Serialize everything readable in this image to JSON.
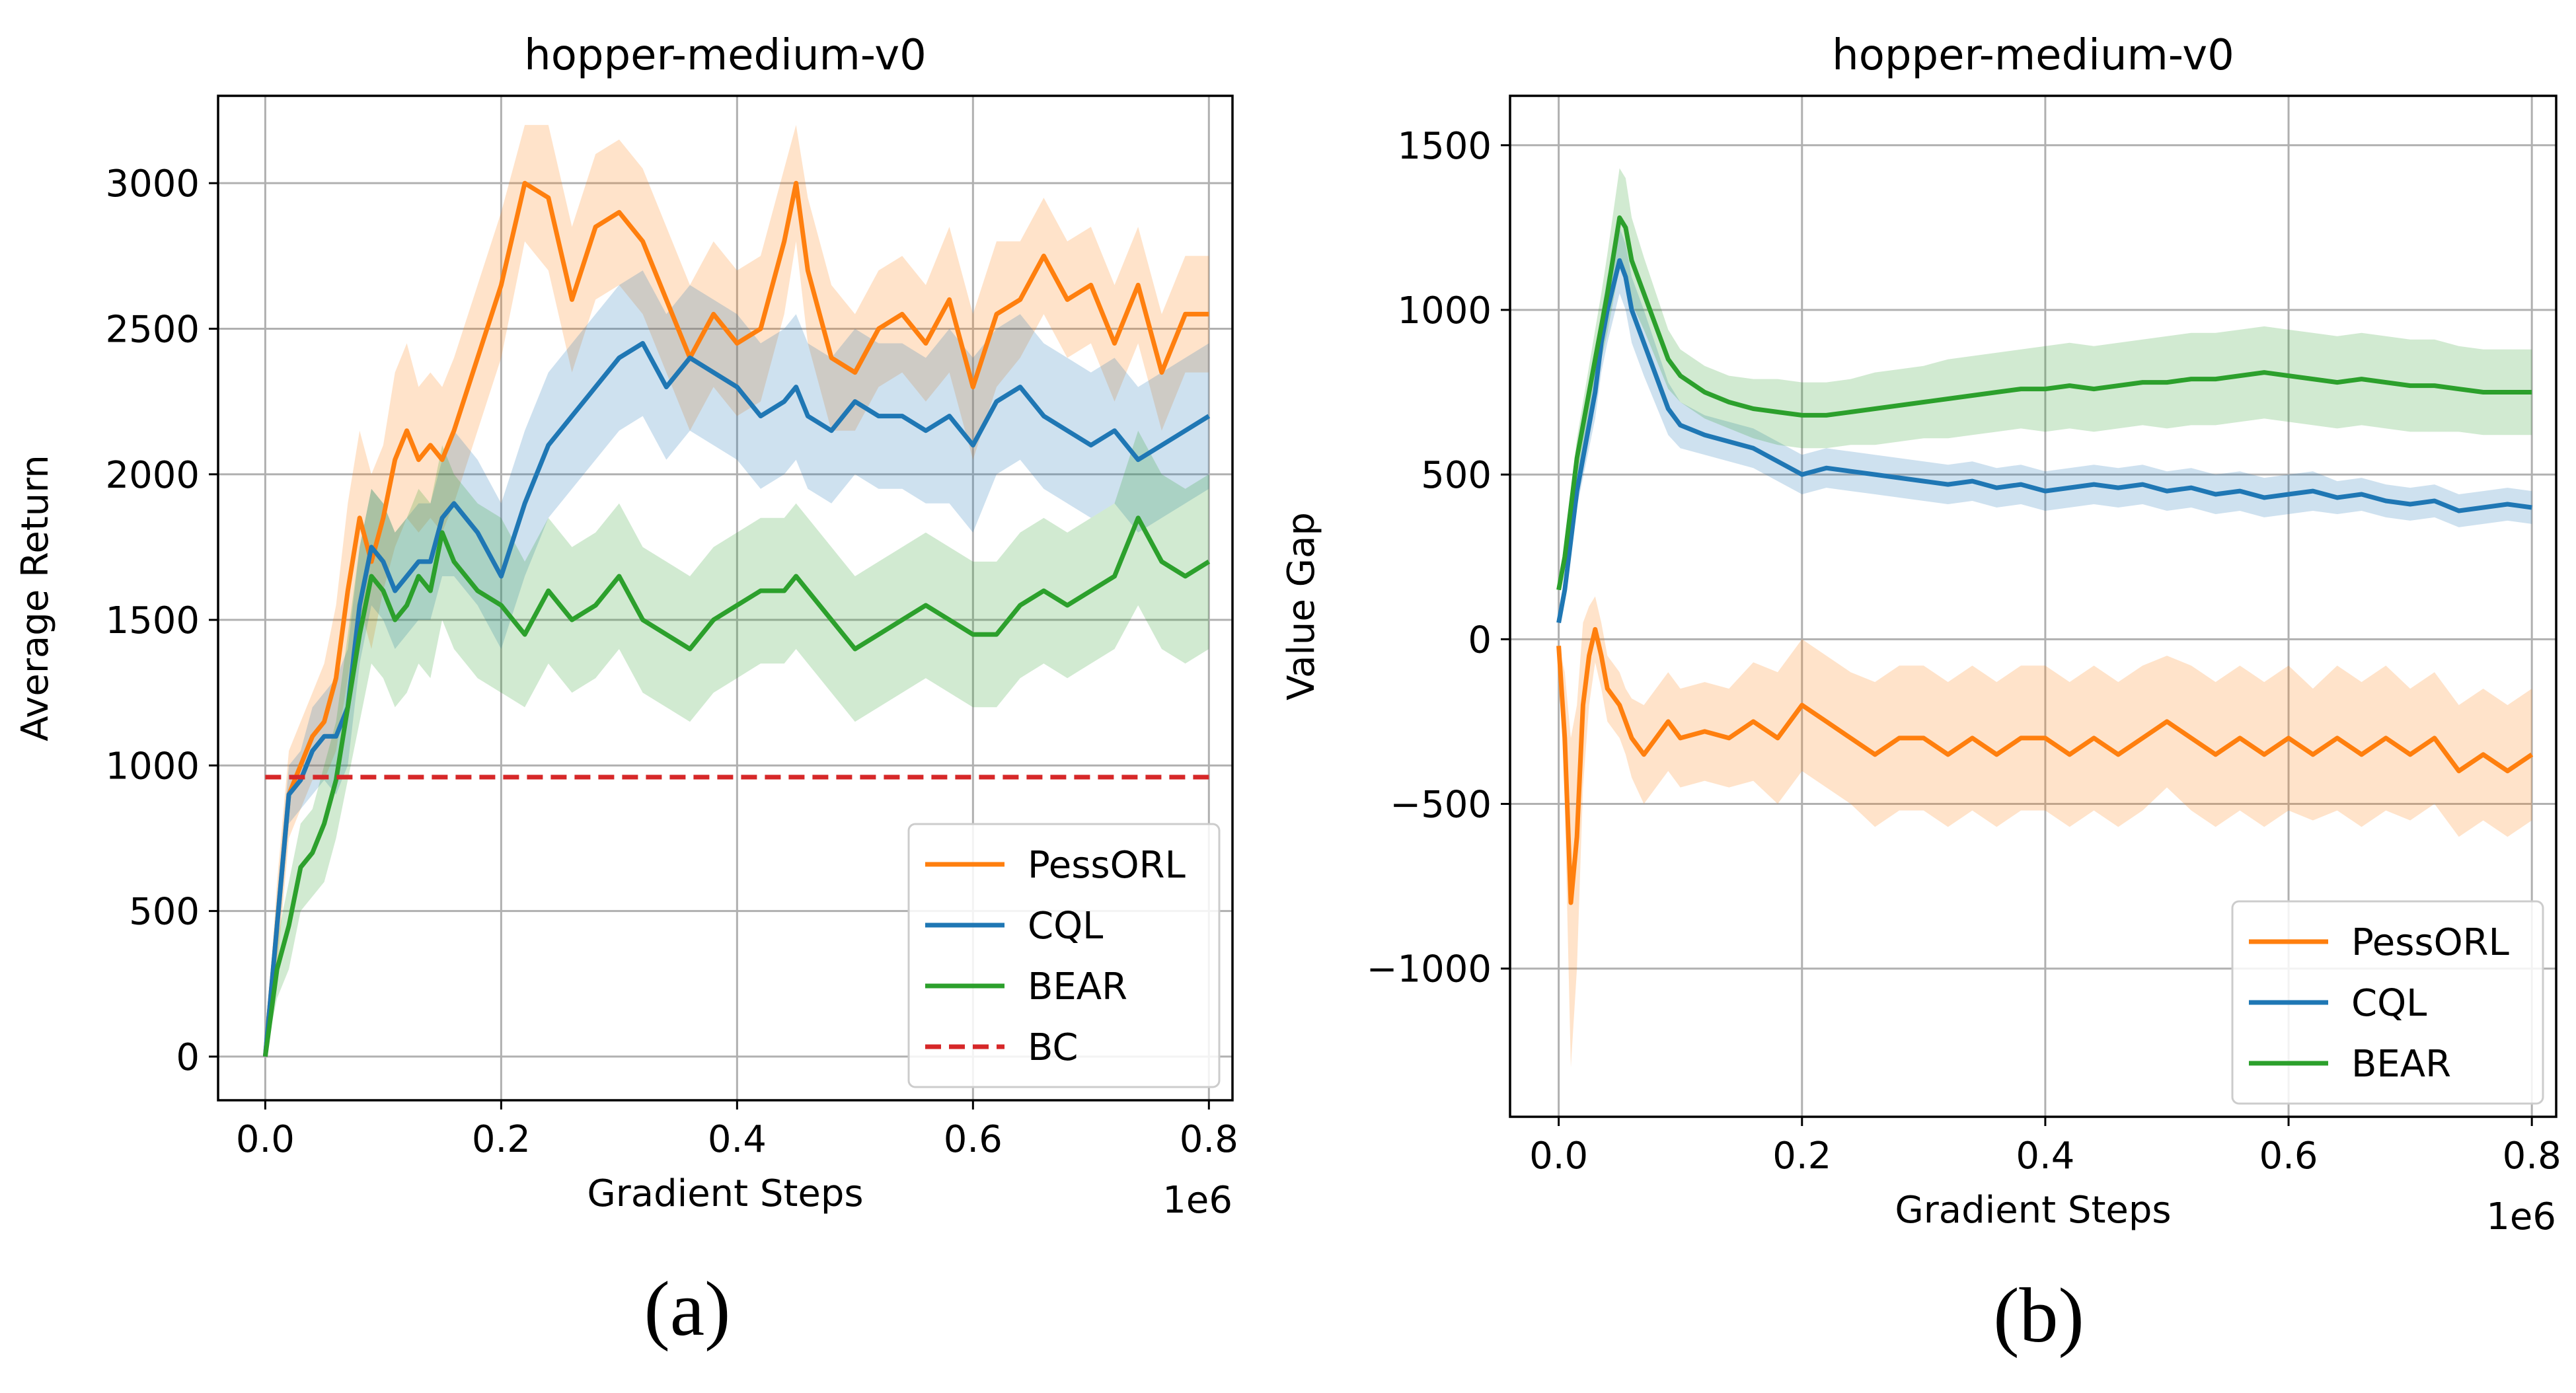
{
  "chart_data": [
    {
      "type": "line",
      "panel_label": "(a)",
      "title": "hopper-medium-v0",
      "xlabel": "Gradient Steps",
      "ylabel": "Average Return",
      "x_offset_text": "1e6",
      "xlim": [
        -0.04,
        0.82
      ],
      "ylim": [
        -150,
        3300
      ],
      "xticks": [
        0.0,
        0.2,
        0.4,
        0.6,
        0.8
      ],
      "xtick_labels": [
        "0.0",
        "0.2",
        "0.4",
        "0.6",
        "0.8"
      ],
      "yticks": [
        0,
        500,
        1000,
        1500,
        2000,
        2500,
        3000
      ],
      "ytick_labels": [
        "0",
        "500",
        "1000",
        "1500",
        "2000",
        "2500",
        "3000"
      ],
      "grid": true,
      "legend_position": "lower-right",
      "x": [
        0.0,
        0.01,
        0.02,
        0.03,
        0.04,
        0.05,
        0.06,
        0.07,
        0.08,
        0.09,
        0.1,
        0.11,
        0.12,
        0.13,
        0.14,
        0.15,
        0.16,
        0.18,
        0.2,
        0.22,
        0.24,
        0.26,
        0.28,
        0.3,
        0.32,
        0.34,
        0.36,
        0.38,
        0.4,
        0.42,
        0.44,
        0.45,
        0.46,
        0.48,
        0.5,
        0.52,
        0.54,
        0.56,
        0.58,
        0.6,
        0.62,
        0.64,
        0.66,
        0.68,
        0.7,
        0.72,
        0.74,
        0.76,
        0.78,
        0.8
      ],
      "series": [
        {
          "name": "PessORL",
          "color": "#ff7f0e",
          "style": "solid",
          "values": [
            0,
            450,
            900,
            1000,
            1100,
            1150,
            1300,
            1600,
            1850,
            1700,
            1850,
            2050,
            2150,
            2050,
            2100,
            2050,
            2150,
            2400,
            2650,
            3000,
            2950,
            2600,
            2850,
            2900,
            2800,
            2600,
            2400,
            2550,
            2450,
            2500,
            2800,
            3000,
            2700,
            2400,
            2350,
            2500,
            2550,
            2450,
            2600,
            2300,
            2550,
            2600,
            2750,
            2600,
            2650,
            2450,
            2650,
            2350,
            2550,
            2550
          ],
          "band": [
            0,
            150,
            150,
            150,
            150,
            200,
            250,
            300,
            300,
            300,
            250,
            300,
            300,
            250,
            250,
            250,
            250,
            250,
            250,
            200,
            250,
            250,
            250,
            250,
            250,
            250,
            250,
            250,
            250,
            250,
            250,
            200,
            250,
            250,
            200,
            200,
            200,
            200,
            250,
            250,
            250,
            200,
            200,
            200,
            200,
            200,
            200,
            200,
            200,
            200
          ]
        },
        {
          "name": "CQL",
          "color": "#1f77b4",
          "style": "solid",
          "values": [
            0,
            450,
            900,
            950,
            1050,
            1100,
            1100,
            1200,
            1550,
            1750,
            1700,
            1600,
            1650,
            1700,
            1700,
            1850,
            1900,
            1800,
            1650,
            1900,
            2100,
            2200,
            2300,
            2400,
            2450,
            2300,
            2400,
            2350,
            2300,
            2200,
            2250,
            2300,
            2200,
            2150,
            2250,
            2200,
            2200,
            2150,
            2200,
            2100,
            2250,
            2300,
            2200,
            2150,
            2100,
            2150,
            2050,
            2100,
            2150,
            2200
          ],
          "band": [
            0,
            100,
            100,
            100,
            150,
            150,
            200,
            200,
            200,
            200,
            200,
            200,
            200,
            200,
            200,
            200,
            250,
            250,
            250,
            250,
            250,
            250,
            250,
            250,
            250,
            250,
            250,
            250,
            250,
            250,
            250,
            250,
            250,
            250,
            250,
            250,
            250,
            250,
            300,
            300,
            250,
            250,
            250,
            250,
            250,
            250,
            250,
            250,
            250,
            250
          ]
        },
        {
          "name": "BEAR",
          "color": "#2ca02c",
          "style": "solid",
          "values": [
            0,
            300,
            450,
            650,
            700,
            800,
            950,
            1200,
            1450,
            1650,
            1600,
            1500,
            1550,
            1650,
            1600,
            1800,
            1700,
            1600,
            1550,
            1450,
            1600,
            1500,
            1550,
            1650,
            1500,
            1450,
            1400,
            1500,
            1550,
            1600,
            1600,
            1650,
            1600,
            1500,
            1400,
            1450,
            1500,
            1550,
            1500,
            1450,
            1450,
            1550,
            1600,
            1550,
            1600,
            1650,
            1850,
            1700,
            1650,
            1700
          ],
          "band": [
            0,
            100,
            150,
            150,
            150,
            200,
            200,
            250,
            300,
            300,
            300,
            300,
            300,
            300,
            300,
            300,
            300,
            300,
            300,
            250,
            250,
            250,
            250,
            250,
            250,
            250,
            250,
            250,
            250,
            250,
            250,
            250,
            250,
            250,
            250,
            250,
            250,
            250,
            250,
            250,
            250,
            250,
            250,
            250,
            250,
            250,
            300,
            300,
            300,
            300
          ]
        },
        {
          "name": "BC",
          "color": "#d62728",
          "style": "dashed",
          "constant": 960
        }
      ]
    },
    {
      "type": "line",
      "panel_label": "(b)",
      "title": "hopper-medium-v0",
      "xlabel": "Gradient Steps",
      "ylabel": "Value Gap",
      "x_offset_text": "1e6",
      "xlim": [
        -0.04,
        0.82
      ],
      "ylim": [
        -1450,
        1650
      ],
      "xticks": [
        0.0,
        0.2,
        0.4,
        0.6,
        0.8
      ],
      "xtick_labels": [
        "0.0",
        "0.2",
        "0.4",
        "0.6",
        "0.8"
      ],
      "yticks": [
        -1000,
        -500,
        0,
        500,
        1000,
        1500
      ],
      "ytick_labels": [
        "−1000",
        "−500",
        "0",
        "500",
        "1000",
        "1500"
      ],
      "grid": true,
      "legend_position": "lower-right",
      "x": [
        0.0,
        0.005,
        0.01,
        0.015,
        0.02,
        0.025,
        0.03,
        0.035,
        0.04,
        0.05,
        0.055,
        0.06,
        0.07,
        0.08,
        0.09,
        0.1,
        0.12,
        0.14,
        0.16,
        0.18,
        0.2,
        0.22,
        0.24,
        0.26,
        0.28,
        0.3,
        0.32,
        0.34,
        0.36,
        0.38,
        0.4,
        0.42,
        0.44,
        0.46,
        0.48,
        0.5,
        0.52,
        0.54,
        0.56,
        0.58,
        0.6,
        0.62,
        0.64,
        0.66,
        0.68,
        0.7,
        0.72,
        0.74,
        0.76,
        0.78,
        0.8
      ],
      "series": [
        {
          "name": "PessORL",
          "color": "#ff7f0e",
          "style": "solid",
          "values": [
            -20,
            -300,
            -800,
            -600,
            -200,
            -50,
            30,
            -50,
            -150,
            -200,
            -250,
            -300,
            -350,
            -300,
            -250,
            -300,
            -280,
            -300,
            -250,
            -300,
            -200,
            -250,
            -300,
            -350,
            -300,
            -300,
            -350,
            -300,
            -350,
            -300,
            -300,
            -350,
            -300,
            -350,
            -300,
            -250,
            -300,
            -350,
            -300,
            -350,
            -300,
            -350,
            -300,
            -350,
            -300,
            -350,
            -300,
            -400,
            -350,
            -400,
            -350
          ],
          "band": [
            0,
            200,
            500,
            400,
            250,
            150,
            100,
            100,
            100,
            100,
            100,
            120,
            150,
            150,
            150,
            150,
            150,
            150,
            180,
            200,
            200,
            200,
            200,
            220,
            220,
            220,
            220,
            220,
            220,
            220,
            220,
            220,
            220,
            220,
            220,
            200,
            220,
            220,
            220,
            220,
            220,
            200,
            220,
            220,
            220,
            200,
            200,
            200,
            200,
            200,
            200
          ]
        },
        {
          "name": "CQL",
          "color": "#1f77b4",
          "style": "solid",
          "values": [
            50,
            150,
            300,
            450,
            550,
            650,
            750,
            900,
            1000,
            1150,
            1100,
            1000,
            900,
            800,
            700,
            650,
            620,
            600,
            580,
            540,
            500,
            520,
            510,
            500,
            490,
            480,
            470,
            480,
            460,
            470,
            450,
            460,
            470,
            460,
            470,
            450,
            460,
            440,
            450,
            430,
            440,
            450,
            430,
            440,
            420,
            410,
            420,
            390,
            400,
            410,
            400
          ],
          "band": [
            0,
            30,
            40,
            50,
            60,
            70,
            80,
            90,
            100,
            100,
            100,
            100,
            100,
            90,
            80,
            70,
            60,
            60,
            60,
            60,
            60,
            60,
            60,
            60,
            60,
            60,
            60,
            60,
            60,
            60,
            60,
            60,
            60,
            60,
            60,
            60,
            60,
            60,
            60,
            60,
            60,
            60,
            50,
            50,
            50,
            50,
            50,
            50,
            50,
            50,
            50
          ]
        },
        {
          "name": "BEAR",
          "color": "#2ca02c",
          "style": "solid",
          "values": [
            150,
            250,
            400,
            550,
            650,
            750,
            850,
            950,
            1050,
            1280,
            1250,
            1150,
            1050,
            950,
            850,
            800,
            750,
            720,
            700,
            690,
            680,
            680,
            690,
            700,
            710,
            720,
            730,
            740,
            750,
            760,
            760,
            770,
            760,
            770,
            780,
            780,
            790,
            790,
            800,
            810,
            800,
            790,
            780,
            790,
            780,
            770,
            770,
            760,
            750,
            750,
            750
          ],
          "band": [
            0,
            40,
            50,
            60,
            70,
            80,
            90,
            100,
            120,
            150,
            150,
            130,
            110,
            100,
            90,
            80,
            80,
            80,
            90,
            100,
            100,
            100,
            100,
            110,
            110,
            110,
            120,
            120,
            120,
            120,
            130,
            130,
            130,
            130,
            130,
            140,
            140,
            140,
            140,
            140,
            140,
            140,
            140,
            140,
            140,
            140,
            140,
            130,
            130,
            130,
            130
          ]
        }
      ]
    }
  ]
}
